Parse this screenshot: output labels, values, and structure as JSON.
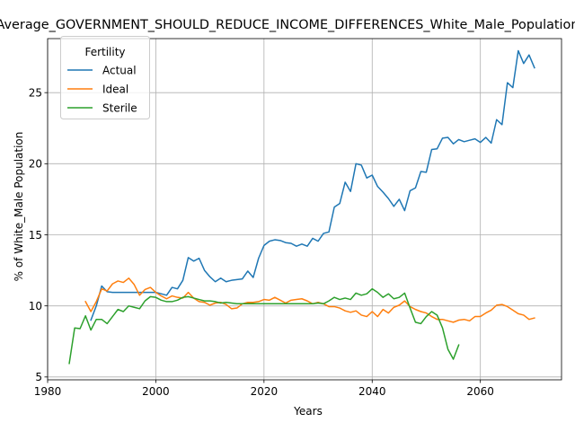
{
  "chart_data": {
    "type": "line",
    "title": "Average_GOVERNMENT_SHOULD_REDUCE_INCOME_DIFFERENCES_White_Male_Population",
    "xlabel": "Years",
    "ylabel": "% of White_Male Population",
    "xlim": [
      1980,
      2075
    ],
    "ylim": [
      4.8,
      28.8
    ],
    "xticks": [
      1980,
      2000,
      2020,
      2040,
      2060
    ],
    "yticks": [
      5,
      10,
      15,
      20,
      25
    ],
    "grid": true,
    "legend": {
      "title": "Fertility",
      "placement": "top-left"
    },
    "series": [
      {
        "name": "Actual",
        "color": "#1f77b4",
        "x": [
          1988,
          1989,
          1990,
          1991,
          1992,
          1993,
          1994,
          1995,
          1996,
          1997,
          1998,
          1999,
          2000,
          2001,
          2002,
          2003,
          2004,
          2005,
          2006,
          2007,
          2008,
          2009,
          2010,
          2011,
          2012,
          2013,
          2014,
          2015,
          2016,
          2017,
          2018,
          2019,
          2020,
          2021,
          2022,
          2023,
          2024,
          2025,
          2026,
          2027,
          2028,
          2029,
          2030,
          2031,
          2032,
          2033,
          2034,
          2035,
          2036,
          2037,
          2038,
          2039,
          2040,
          2041,
          2042,
          2043,
          2044,
          2045,
          2046,
          2047,
          2048,
          2049,
          2050,
          2051,
          2052,
          2053,
          2054,
          2055,
          2056,
          2057,
          2058,
          2059,
          2060,
          2061,
          2062,
          2063,
          2064,
          2065,
          2066,
          2067,
          2068,
          2069,
          2070
        ],
        "values": [
          9.0,
          10.0,
          11.4,
          11.0,
          10.95,
          10.95,
          10.95,
          10.95,
          10.95,
          10.95,
          10.95,
          10.95,
          10.95,
          10.85,
          10.75,
          11.3,
          11.2,
          11.8,
          13.4,
          13.15,
          13.35,
          12.5,
          12.05,
          11.7,
          11.95,
          11.7,
          11.8,
          11.85,
          11.9,
          12.45,
          12.0,
          13.35,
          14.25,
          14.55,
          14.65,
          14.6,
          14.45,
          14.4,
          14.2,
          14.35,
          14.2,
          14.75,
          14.55,
          15.1,
          15.2,
          16.95,
          17.2,
          18.7,
          18.05,
          20.0,
          19.9,
          19.0,
          19.2,
          18.4,
          18.0,
          17.55,
          17.0,
          17.5,
          16.7,
          18.1,
          18.3,
          19.45,
          19.4,
          21.0,
          21.05,
          21.8,
          21.85,
          21.4,
          21.7,
          21.55,
          21.65,
          21.75,
          21.5,
          21.85,
          21.45,
          23.1,
          22.75,
          25.7,
          25.35,
          27.95,
          27.05,
          27.65,
          26.75
        ]
      },
      {
        "name": "Ideal",
        "color": "#ff7f0e",
        "x": [
          1987,
          1988,
          1989,
          1990,
          1991,
          1992,
          1993,
          1994,
          1995,
          1996,
          1997,
          1998,
          1999,
          2000,
          2001,
          2002,
          2003,
          2004,
          2005,
          2006,
          2007,
          2008,
          2009,
          2010,
          2011,
          2012,
          2013,
          2014,
          2015,
          2016,
          2017,
          2018,
          2019,
          2020,
          2021,
          2022,
          2023,
          2024,
          2025,
          2026,
          2027,
          2028,
          2029,
          2030,
          2031,
          2032,
          2033,
          2034,
          2035,
          2036,
          2037,
          2038,
          2039,
          2040,
          2041,
          2042,
          2043,
          2044,
          2045,
          2046,
          2047,
          2048,
          2049,
          2050,
          2051,
          2052,
          2053,
          2054,
          2055,
          2056,
          2057,
          2058,
          2059,
          2060,
          2061,
          2062,
          2063,
          2064,
          2065,
          2066,
          2067,
          2068,
          2069,
          2070
        ],
        "values": [
          10.3,
          9.6,
          10.3,
          11.2,
          11.05,
          11.55,
          11.75,
          11.65,
          11.95,
          11.5,
          10.75,
          11.15,
          11.3,
          10.95,
          10.7,
          10.5,
          10.7,
          10.6,
          10.55,
          10.95,
          10.55,
          10.3,
          10.25,
          10.05,
          10.2,
          10.25,
          10.1,
          9.8,
          9.85,
          10.15,
          10.25,
          10.25,
          10.3,
          10.45,
          10.4,
          10.6,
          10.4,
          10.2,
          10.4,
          10.45,
          10.5,
          10.35,
          10.15,
          10.25,
          10.15,
          9.95,
          9.95,
          9.85,
          9.65,
          9.55,
          9.65,
          9.35,
          9.25,
          9.6,
          9.25,
          9.75,
          9.5,
          9.9,
          10.05,
          10.35,
          9.95,
          9.75,
          9.6,
          9.5,
          9.25,
          9.05,
          9.05,
          8.95,
          8.85,
          9.0,
          9.05,
          8.95,
          9.25,
          9.25,
          9.5,
          9.7,
          10.05,
          10.1,
          9.95,
          9.7,
          9.45,
          9.35,
          9.05,
          9.15
        ]
      },
      {
        "name": "Sterile",
        "color": "#2ca02c",
        "x": [
          1984,
          1985,
          1986,
          1987,
          1988,
          1989,
          1990,
          1991,
          1992,
          1993,
          1994,
          1995,
          1996,
          1997,
          1998,
          1999,
          2000,
          2001,
          2002,
          2003,
          2004,
          2005,
          2006,
          2007,
          2008,
          2009,
          2010,
          2011,
          2012,
          2013,
          2014,
          2015,
          2016,
          2017,
          2018,
          2019,
          2020,
          2021,
          2022,
          2023,
          2024,
          2025,
          2026,
          2027,
          2028,
          2029,
          2030,
          2031,
          2032,
          2033,
          2034,
          2035,
          2036,
          2037,
          2038,
          2039,
          2040,
          2041,
          2042,
          2043,
          2044,
          2045,
          2046,
          2047,
          2048,
          2049,
          2050,
          2051,
          2052,
          2053,
          2054,
          2055,
          2056
        ],
        "values": [
          5.95,
          8.45,
          8.4,
          9.3,
          8.3,
          9.05,
          9.05,
          8.75,
          9.25,
          9.75,
          9.6,
          10.0,
          9.9,
          9.8,
          10.35,
          10.65,
          10.6,
          10.4,
          10.3,
          10.3,
          10.4,
          10.6,
          10.65,
          10.55,
          10.45,
          10.35,
          10.35,
          10.3,
          10.2,
          10.25,
          10.2,
          10.15,
          10.15,
          10.15,
          10.15,
          10.15,
          10.15,
          10.15,
          10.15,
          10.15,
          10.15,
          10.15,
          10.15,
          10.15,
          10.15,
          10.15,
          10.2,
          10.15,
          10.35,
          10.6,
          10.45,
          10.55,
          10.45,
          10.9,
          10.75,
          10.85,
          11.2,
          10.95,
          10.6,
          10.85,
          10.5,
          10.6,
          10.9,
          9.85,
          8.85,
          8.75,
          9.25,
          9.6,
          9.35,
          8.45,
          6.95,
          6.25,
          7.25
        ]
      }
    ]
  }
}
